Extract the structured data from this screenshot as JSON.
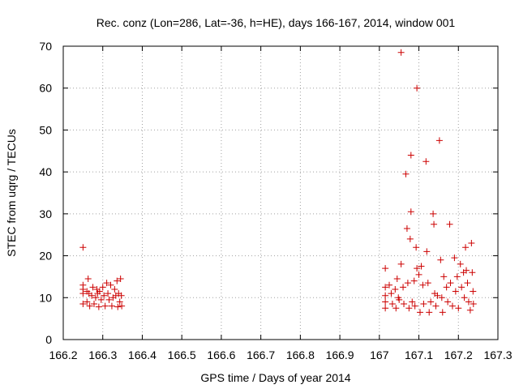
{
  "chart_data": {
    "type": "scatter",
    "title": "Rec. conz (Lon=286, Lat=-36, h=HE), days 166-167, 2014, window 001",
    "xlabel": "GPS time / Days of year 2014",
    "ylabel": "STEC from uqrg / TECUs",
    "xlim": [
      166.2,
      167.3
    ],
    "ylim": [
      0,
      70
    ],
    "xticks": [
      "166.2",
      "166.3",
      "166.4",
      "166.5",
      "166.6",
      "166.7",
      "166.8",
      "166.9",
      "167",
      "167.1",
      "167.2",
      "167.3"
    ],
    "xtick_values": [
      166.2,
      166.3,
      166.4,
      166.5,
      166.6,
      166.7,
      166.8,
      166.9,
      167.0,
      167.1,
      167.2,
      167.3
    ],
    "yticks": [
      "0",
      "10",
      "20",
      "30",
      "40",
      "50",
      "60",
      "70"
    ],
    "ytick_values": [
      0,
      10,
      20,
      30,
      40,
      50,
      60,
      70
    ],
    "grid": true,
    "marker": "plus",
    "marker_color": "#cc0000",
    "series": [
      {
        "points": [
          [
            166.25,
            22.0
          ],
          [
            166.25,
            13.0
          ],
          [
            166.25,
            12.0
          ],
          [
            166.25,
            11.0
          ],
          [
            166.25,
            8.5
          ],
          [
            166.26,
            11.5
          ],
          [
            166.26,
            9.0
          ],
          [
            166.263,
            14.5
          ],
          [
            166.265,
            11.0
          ],
          [
            166.267,
            8.0
          ],
          [
            166.272,
            10.5
          ],
          [
            166.275,
            12.5
          ],
          [
            166.278,
            8.5
          ],
          [
            166.282,
            10.0
          ],
          [
            166.285,
            12.0
          ],
          [
            166.287,
            11.0
          ],
          [
            166.29,
            7.8
          ],
          [
            166.292,
            11.5
          ],
          [
            166.296,
            9.5
          ],
          [
            166.3,
            12.5
          ],
          [
            166.303,
            10.5
          ],
          [
            166.306,
            8.0
          ],
          [
            166.31,
            13.5
          ],
          [
            166.313,
            11.0
          ],
          [
            166.316,
            9.5
          ],
          [
            166.32,
            13.0
          ],
          [
            166.323,
            8.0
          ],
          [
            166.326,
            10.0
          ],
          [
            166.33,
            12.0
          ],
          [
            166.333,
            10.5
          ],
          [
            166.336,
            14.0
          ],
          [
            166.338,
            7.8
          ],
          [
            166.34,
            11.0
          ],
          [
            166.343,
            9.0
          ],
          [
            166.345,
            14.5
          ],
          [
            166.347,
            10.5
          ],
          [
            166.348,
            8.0
          ],
          [
            167.015,
            17.0
          ],
          [
            167.015,
            12.5
          ],
          [
            167.015,
            10.5
          ],
          [
            167.015,
            9.0
          ],
          [
            167.015,
            7.5
          ],
          [
            167.025,
            13.0
          ],
          [
            167.03,
            11.0
          ],
          [
            167.033,
            8.5
          ],
          [
            167.04,
            12.0
          ],
          [
            167.042,
            7.5
          ],
          [
            167.045,
            14.5
          ],
          [
            167.048,
            10.0
          ],
          [
            167.05,
            9.5
          ],
          [
            167.055,
            18.0
          ],
          [
            167.055,
            68.5
          ],
          [
            167.06,
            12.5
          ],
          [
            167.062,
            8.5
          ],
          [
            167.067,
            39.5
          ],
          [
            167.07,
            26.5
          ],
          [
            167.072,
            13.5
          ],
          [
            167.075,
            7.5
          ],
          [
            167.078,
            24.0
          ],
          [
            167.08,
            44.0
          ],
          [
            167.08,
            30.5
          ],
          [
            167.083,
            9.0
          ],
          [
            167.088,
            14.0
          ],
          [
            167.09,
            8.0
          ],
          [
            167.093,
            22.0
          ],
          [
            167.095,
            17.0
          ],
          [
            167.095,
            60.0
          ],
          [
            167.1,
            15.5
          ],
          [
            167.103,
            6.5
          ],
          [
            167.106,
            17.5
          ],
          [
            167.11,
            13.0
          ],
          [
            167.112,
            8.5
          ],
          [
            167.118,
            42.5
          ],
          [
            167.12,
            21.0
          ],
          [
            167.123,
            13.5
          ],
          [
            167.126,
            6.5
          ],
          [
            167.13,
            9.0
          ],
          [
            167.136,
            30.0
          ],
          [
            167.138,
            27.5
          ],
          [
            167.14,
            11.0
          ],
          [
            167.143,
            8.0
          ],
          [
            167.147,
            10.5
          ],
          [
            167.152,
            47.5
          ],
          [
            167.155,
            19.0
          ],
          [
            167.158,
            10.0
          ],
          [
            167.16,
            6.5
          ],
          [
            167.163,
            15.0
          ],
          [
            167.17,
            12.5
          ],
          [
            167.173,
            9.0
          ],
          [
            167.178,
            27.5
          ],
          [
            167.18,
            13.5
          ],
          [
            167.185,
            8.0
          ],
          [
            167.19,
            19.5
          ],
          [
            167.193,
            11.5
          ],
          [
            167.197,
            15.0
          ],
          [
            167.2,
            7.5
          ],
          [
            167.205,
            18.0
          ],
          [
            167.208,
            12.5
          ],
          [
            167.213,
            16.0
          ],
          [
            167.215,
            10.0
          ],
          [
            167.218,
            22.0
          ],
          [
            167.22,
            16.5
          ],
          [
            167.223,
            13.5
          ],
          [
            167.226,
            9.0
          ],
          [
            167.23,
            7.0
          ],
          [
            167.233,
            23.0
          ],
          [
            167.235,
            16.0
          ],
          [
            167.237,
            11.5
          ],
          [
            167.238,
            8.5
          ]
        ]
      }
    ]
  }
}
